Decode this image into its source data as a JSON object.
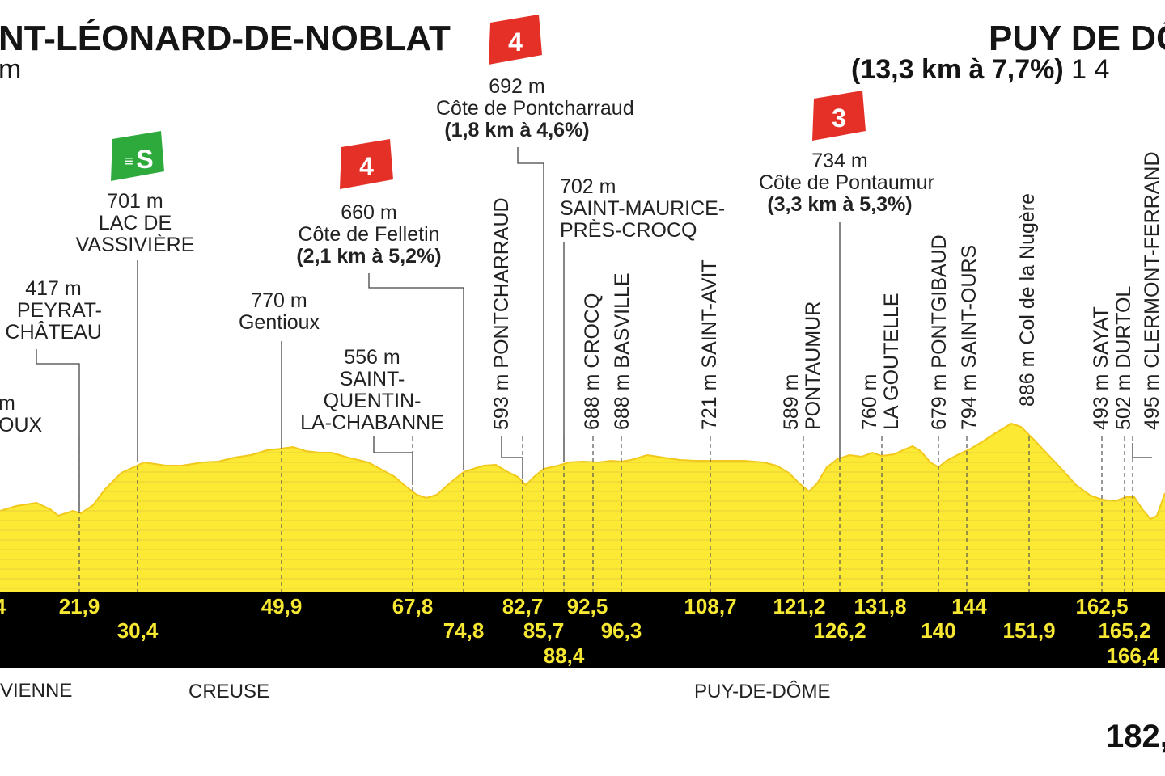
{
  "header": {
    "start_name": "NT-LÉONARD-DE-NOBLAT",
    "start_sub": "m",
    "finish_name": "PUY DE DÔ",
    "finish_climb": "(13,3 km à 7,7%)",
    "finish_alt": " 1 4"
  },
  "climbs": [
    {
      "cat": "4",
      "alt": "692 m",
      "name": "Côte de Pontcharraud",
      "detail": "(1,8 km à 4,6%)",
      "color": "#e53027"
    },
    {
      "cat": "4",
      "alt": "660 m",
      "name": "Côte de Felletin",
      "detail": "(2,1 km à 5,2%)",
      "color": "#e53027"
    },
    {
      "cat": "3",
      "alt": "734 m",
      "name": "Côte de Pontaumur",
      "detail": "(3,3 km à 5,3%)",
      "color": "#e53027"
    }
  ],
  "sprint": {
    "symbol": "S",
    "alt": "701 m",
    "name_line1": "LAC DE",
    "name_line2": "VASSIVIÈRE",
    "color": "#2eaa3c"
  },
  "points": {
    "peyrat": {
      "alt": "417 m",
      "line1": "PEYRAT-",
      "line2": "CHÂTEAU"
    },
    "edge": {
      "alt": "m",
      "line1": "OUX"
    },
    "gentioux": {
      "alt": "770 m",
      "name": "Gentioux"
    },
    "saint_quentin": {
      "alt": "556 m",
      "line1": "SAINT-",
      "line2": "QUENTIN-",
      "line3": "LA-CHABANNE"
    },
    "saint_maurice": {
      "alt": "702 m",
      "line1": "SAINT-MAURICE-",
      "line2": "PRÈS-CROCQ"
    },
    "pontcharraud": "593 m PONTCHARRAUD",
    "crocq": "688 m CROCQ",
    "basville": "688 m BASVILLE",
    "saint_avit": "721 m SAINT-AVIT",
    "pontaumur_alt": "589 m",
    "pontaumur_name": "PONTAUMUR",
    "goutelle_alt": "760 m",
    "goutelle_name": "LA GOUTELLE",
    "pontgibaud": "679 m PONTGIBAUD",
    "saint_ours": "794 m SAINT-OURS",
    "nugere": "886 m Col de la Nugère",
    "sayat": "493 m SAYAT",
    "durtol": "502 m DURTOL",
    "clermont": "495 m CLERMONT-FERRAND"
  },
  "km_markers": [
    {
      "label": "4",
      "row": 0
    },
    {
      "label": "21,9",
      "row": 0
    },
    {
      "label": "30,4",
      "row": 1
    },
    {
      "label": "49,9",
      "row": 0
    },
    {
      "label": "67,8",
      "row": 0
    },
    {
      "label": "74,8",
      "row": 1
    },
    {
      "label": "82,7",
      "row": 0
    },
    {
      "label": "85,7",
      "row": 1
    },
    {
      "label": "88,4",
      "row": 2
    },
    {
      "label": "92,5",
      "row": 0
    },
    {
      "label": "96,3",
      "row": 1
    },
    {
      "label": "108,7",
      "row": 0
    },
    {
      "label": "121,2",
      "row": 0
    },
    {
      "label": "126,2",
      "row": 1
    },
    {
      "label": "131,8",
      "row": 0
    },
    {
      "label": "140",
      "row": 1
    },
    {
      "label": "144",
      "row": 0
    },
    {
      "label": "151,9",
      "row": 1
    },
    {
      "label": "162,5",
      "row": 0
    },
    {
      "label": "165,2",
      "row": 1
    },
    {
      "label": "166,4",
      "row": 2
    }
  ],
  "departments": [
    "VIENNE",
    "CREUSE",
    "PUY-DE-DÔME"
  ],
  "total_distance": "182,",
  "colors": {
    "profile_fill": "#fbe934",
    "profile_edge": "#f2c81a",
    "band": "#000000",
    "band_text": "#f6e733"
  },
  "chart_data": {
    "type": "area",
    "series": [
      {
        "values": [
          417,
          701,
          770,
          556,
          593,
          692,
          702,
          688,
          688,
          721,
          734,
          589,
          760,
          679,
          794,
          886,
          493,
          502,
          495
        ]
      }
    ]
  }
}
